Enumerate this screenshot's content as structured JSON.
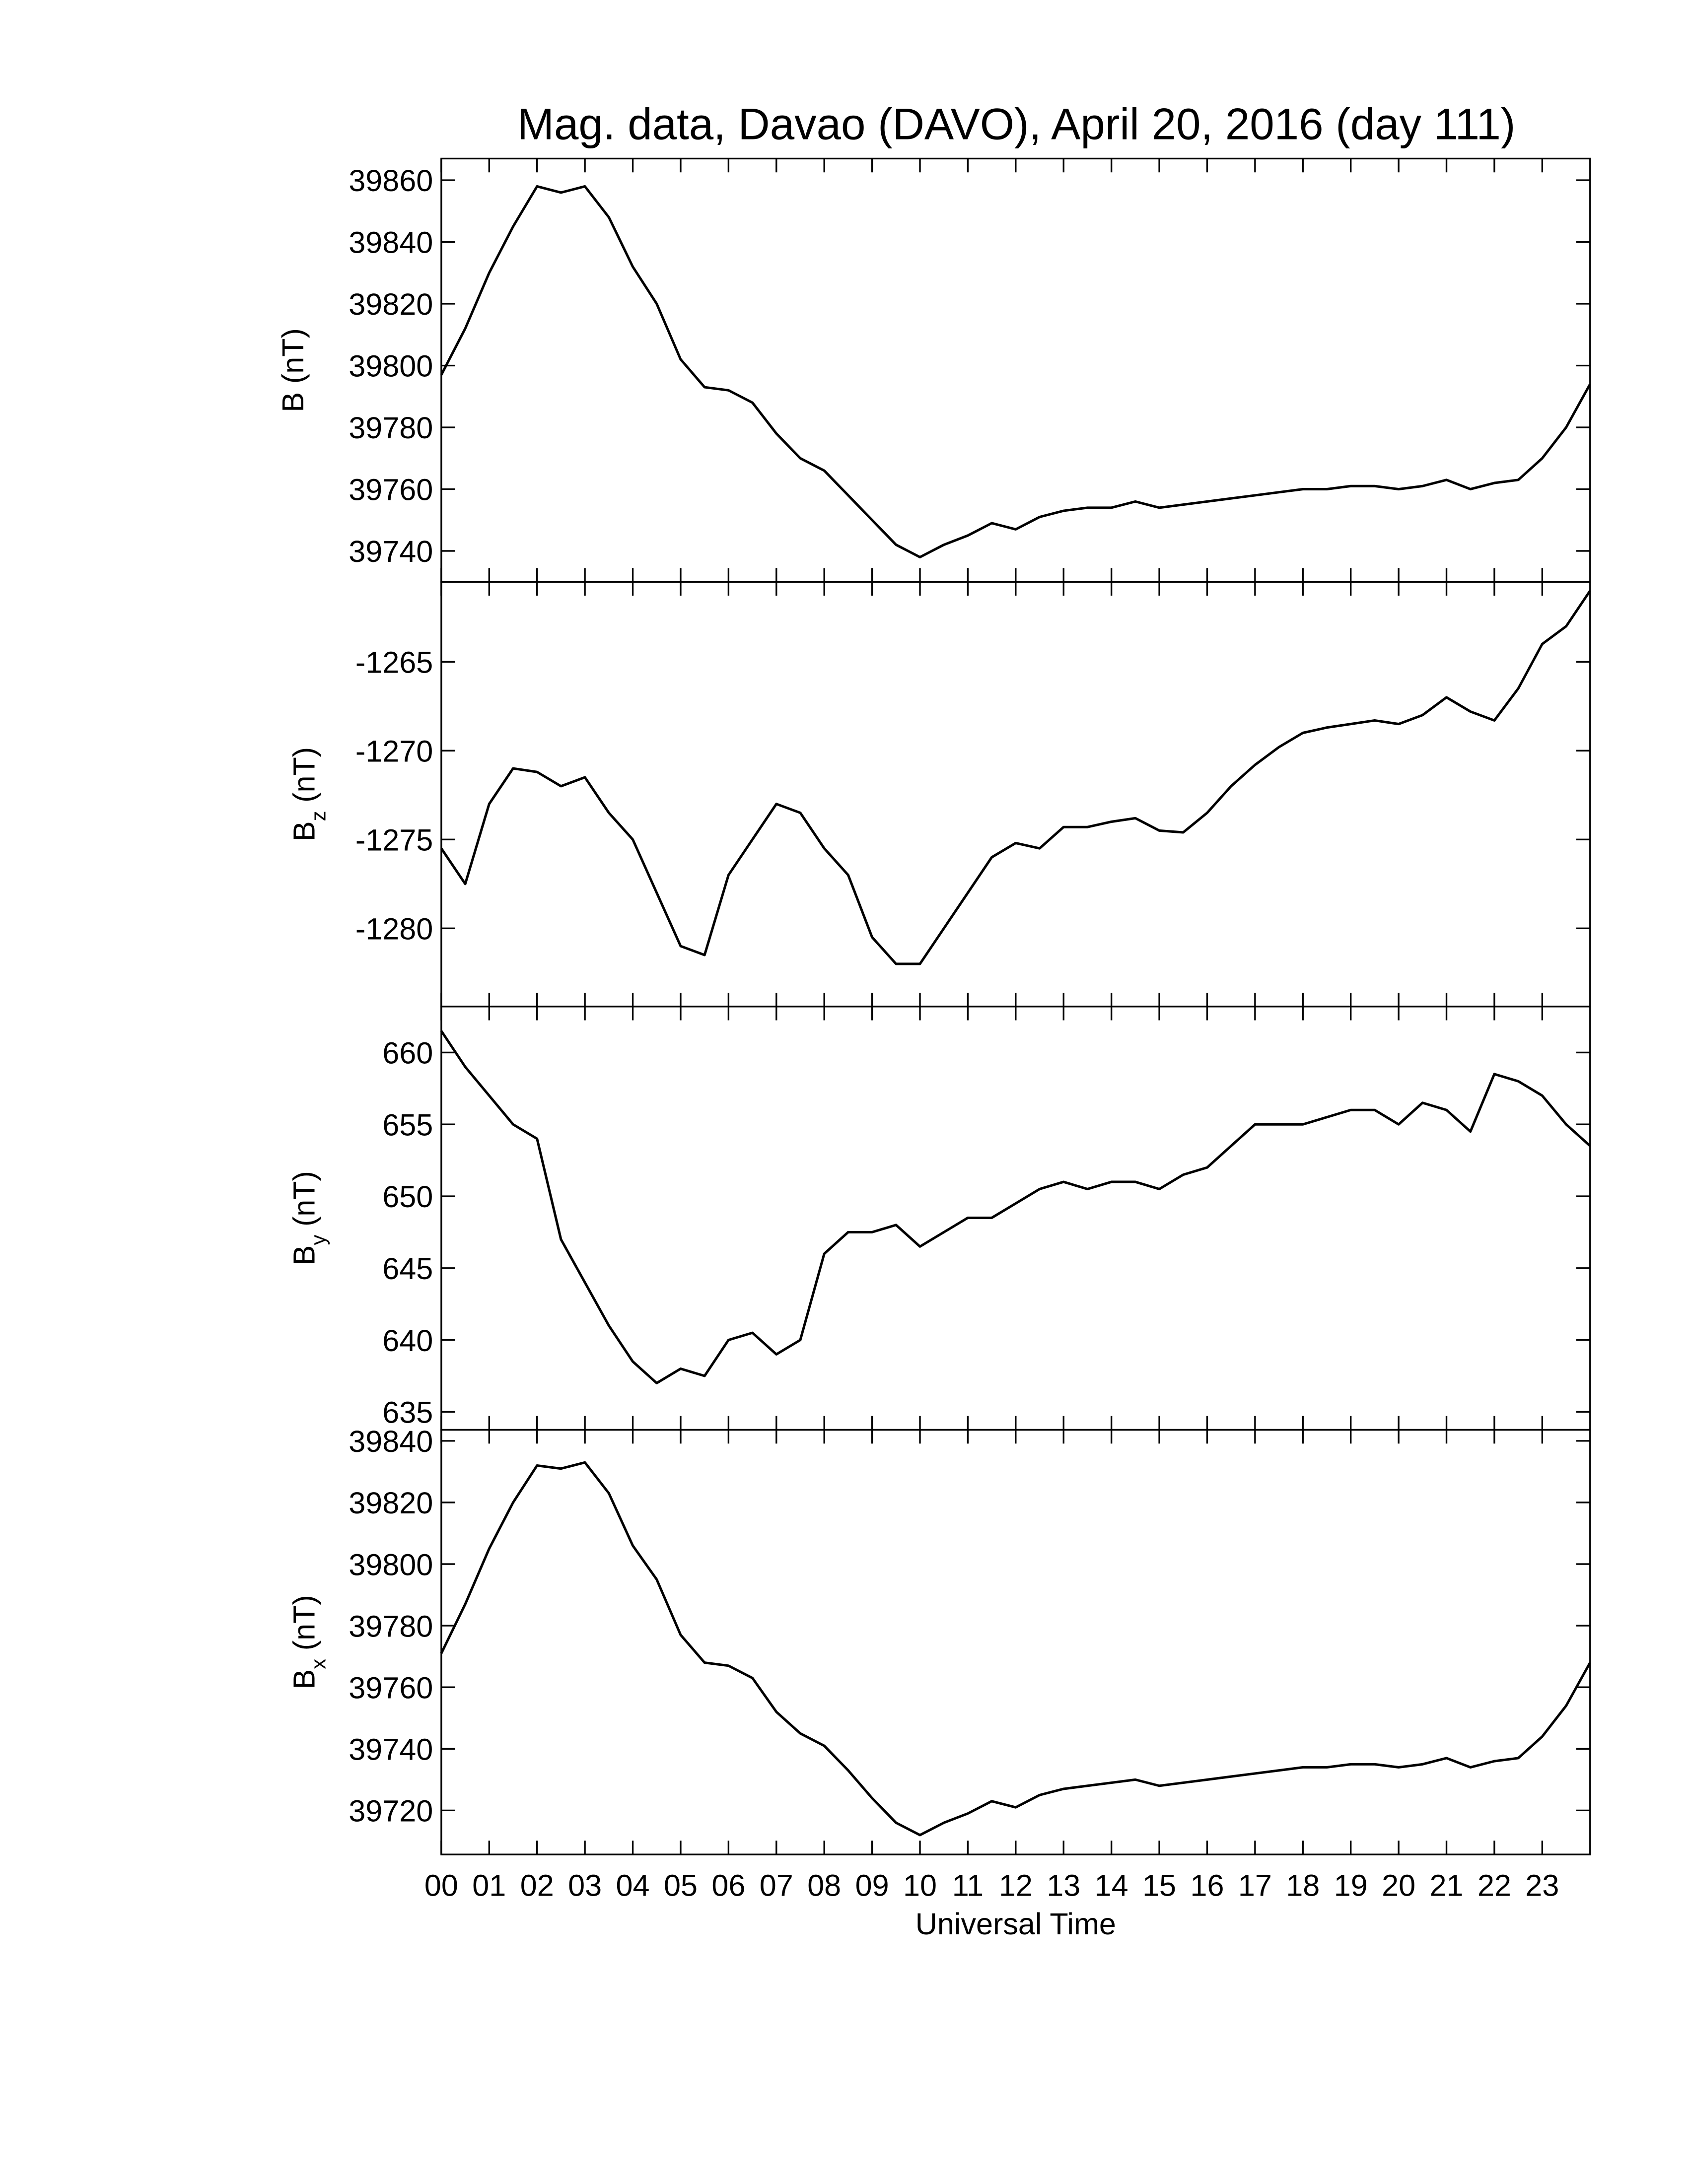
{
  "chart_data": [
    {
      "type": "line",
      "title": "Mag. data, Davao (DAVO), April 20, 2016 (day 111)",
      "ylabel": "B",
      "ylabel_unit": "(nT)",
      "xlim": [
        0,
        24
      ],
      "ylim": [
        39730,
        39867
      ],
      "yticks": [
        39740,
        39760,
        39780,
        39800,
        39820,
        39840,
        39860
      ],
      "color": "#000000",
      "x": [
        0,
        0.5,
        1,
        1.5,
        2,
        2.5,
        3,
        3.5,
        4,
        4.5,
        5,
        5.5,
        6,
        6.5,
        7,
        7.5,
        8,
        8.5,
        9,
        9.5,
        10,
        10.5,
        11,
        11.5,
        12,
        12.5,
        13,
        13.5,
        14,
        14.5,
        15,
        15.5,
        16,
        16.5,
        17,
        17.5,
        18,
        18.5,
        19,
        19.5,
        20,
        20.5,
        21,
        21.5,
        22,
        22.5,
        23,
        23.5,
        24
      ],
      "values": [
        39797,
        39812,
        39830,
        39845,
        39858,
        39856,
        39858,
        39848,
        39832,
        39820,
        39802,
        39793,
        39792,
        39788,
        39778,
        39770,
        39766,
        39758,
        39750,
        39742,
        39738,
        39742,
        39745,
        39749,
        39747,
        39751,
        39753,
        39754,
        39754,
        39756,
        39754,
        39755,
        39756,
        39757,
        39758,
        39759,
        39760,
        39760,
        39761,
        39761,
        39760,
        39761,
        39763,
        39760,
        39762,
        39763,
        39770,
        39780,
        39794
      ]
    },
    {
      "type": "line",
      "ylabel": "B",
      "ylabel_sub": "z",
      "ylabel_unit": "(nT)",
      "xlim": [
        0,
        24
      ],
      "ylim": [
        -1284.4,
        -1260.5
      ],
      "yticks": [
        -1280,
        -1275,
        -1270,
        -1265
      ],
      "color": "#000000",
      "x": [
        0,
        0.5,
        1,
        1.5,
        2,
        2.5,
        3,
        3.5,
        4,
        4.5,
        5,
        5.5,
        6,
        6.5,
        7,
        7.5,
        8,
        8.5,
        9,
        9.5,
        10,
        10.5,
        11,
        11.5,
        12,
        12.5,
        13,
        13.5,
        14,
        14.5,
        15,
        15.5,
        16,
        16.5,
        17,
        17.5,
        18,
        18.5,
        19,
        19.5,
        20,
        20.5,
        21,
        21.5,
        22,
        22.5,
        23,
        23.5,
        24
      ],
      "values": [
        -1275.5,
        -1277.5,
        -1273,
        -1271,
        -1271.2,
        -1272,
        -1271.5,
        -1273.5,
        -1275,
        -1278,
        -1281,
        -1281.5,
        -1277,
        -1275,
        -1273,
        -1273.5,
        -1275.5,
        -1277,
        -1280.5,
        -1282,
        -1282,
        -1280,
        -1278,
        -1276,
        -1275.2,
        -1275.5,
        -1274.3,
        -1274.3,
        -1274,
        -1273.8,
        -1274.5,
        -1274.6,
        -1273.5,
        -1272,
        -1270.8,
        -1269.8,
        -1269,
        -1268.7,
        -1268.5,
        -1268.3,
        -1268.5,
        -1268,
        -1267,
        -1267.8,
        -1268.3,
        -1266.5,
        -1264,
        -1263,
        -1261
      ]
    },
    {
      "type": "line",
      "ylabel": "B",
      "ylabel_sub": "y",
      "ylabel_unit": "(nT)",
      "xlim": [
        0,
        24
      ],
      "ylim": [
        633.75,
        663.2
      ],
      "yticks": [
        635,
        640,
        645,
        650,
        655,
        660
      ],
      "color": "#000000",
      "x": [
        0,
        0.5,
        1,
        1.5,
        2,
        2.5,
        3,
        3.5,
        4,
        4.5,
        5,
        5.5,
        6,
        6.5,
        7,
        7.5,
        8,
        8.5,
        9,
        9.5,
        10,
        10.5,
        11,
        11.5,
        12,
        12.5,
        13,
        13.5,
        14,
        14.5,
        15,
        15.5,
        16,
        16.5,
        17,
        17.5,
        18,
        18.5,
        19,
        19.5,
        20,
        20.5,
        21,
        21.5,
        22,
        22.5,
        23,
        23.5,
        24
      ],
      "values": [
        661.5,
        659,
        657,
        655,
        654,
        647,
        644,
        641,
        638.5,
        637,
        638,
        637.5,
        640,
        640.5,
        639,
        640,
        646,
        647.5,
        647.5,
        648,
        646.5,
        647.5,
        648.5,
        648.5,
        649.5,
        650.5,
        651,
        650.5,
        651,
        651,
        650.5,
        651.5,
        652,
        653.5,
        655,
        655,
        655,
        655.5,
        656,
        656,
        655,
        656.5,
        656,
        654.5,
        658.5,
        658,
        657,
        655,
        653.5
      ]
    },
    {
      "type": "line",
      "ylabel": "B",
      "ylabel_sub": "x",
      "ylabel_unit": "(nT)",
      "xlabel": "Universal Time",
      "xlim": [
        0,
        24
      ],
      "ylim": [
        39705.7,
        39843.6
      ],
      "yticks": [
        39720,
        39740,
        39760,
        39780,
        39800,
        39820,
        39840
      ],
      "xticks": [
        {
          "value": 0,
          "label": "00"
        },
        {
          "value": 1,
          "label": "01"
        },
        {
          "value": 2,
          "label": "02"
        },
        {
          "value": 3,
          "label": "03"
        },
        {
          "value": 4,
          "label": "04"
        },
        {
          "value": 5,
          "label": "05"
        },
        {
          "value": 6,
          "label": "06"
        },
        {
          "value": 7,
          "label": "07"
        },
        {
          "value": 8,
          "label": "08"
        },
        {
          "value": 9,
          "label": "09"
        },
        {
          "value": 10,
          "label": "10"
        },
        {
          "value": 11,
          "label": "11"
        },
        {
          "value": 12,
          "label": "12"
        },
        {
          "value": 13,
          "label": "13"
        },
        {
          "value": 14,
          "label": "14"
        },
        {
          "value": 15,
          "label": "15"
        },
        {
          "value": 16,
          "label": "16"
        },
        {
          "value": 17,
          "label": "17"
        },
        {
          "value": 18,
          "label": "18"
        },
        {
          "value": 19,
          "label": "19"
        },
        {
          "value": 20,
          "label": "20"
        },
        {
          "value": 21,
          "label": "21"
        },
        {
          "value": 22,
          "label": "22"
        },
        {
          "value": 23,
          "label": "23"
        }
      ],
      "color": "#000000",
      "x": [
        0,
        0.5,
        1,
        1.5,
        2,
        2.5,
        3,
        3.5,
        4,
        4.5,
        5,
        5.5,
        6,
        6.5,
        7,
        7.5,
        8,
        8.5,
        9,
        9.5,
        10,
        10.5,
        11,
        11.5,
        12,
        12.5,
        13,
        13.5,
        14,
        14.5,
        15,
        15.5,
        16,
        16.5,
        17,
        17.5,
        18,
        18.5,
        19,
        19.5,
        20,
        20.5,
        21,
        21.5,
        22,
        22.5,
        23,
        23.5,
        24
      ],
      "values": [
        39771,
        39787,
        39805,
        39820,
        39832,
        39831,
        39833,
        39823,
        39806,
        39795,
        39777,
        39768,
        39767,
        39763,
        39752,
        39745,
        39741,
        39733,
        39724,
        39716,
        39712,
        39716,
        39719,
        39723,
        39721,
        39725,
        39727,
        39728,
        39729,
        39730,
        39728,
        39729,
        39730,
        39731,
        39732,
        39733,
        39734,
        39734,
        39735,
        39735,
        39734,
        39735,
        39737,
        39734,
        39736,
        39737,
        39744,
        39754,
        39768
      ]
    }
  ]
}
